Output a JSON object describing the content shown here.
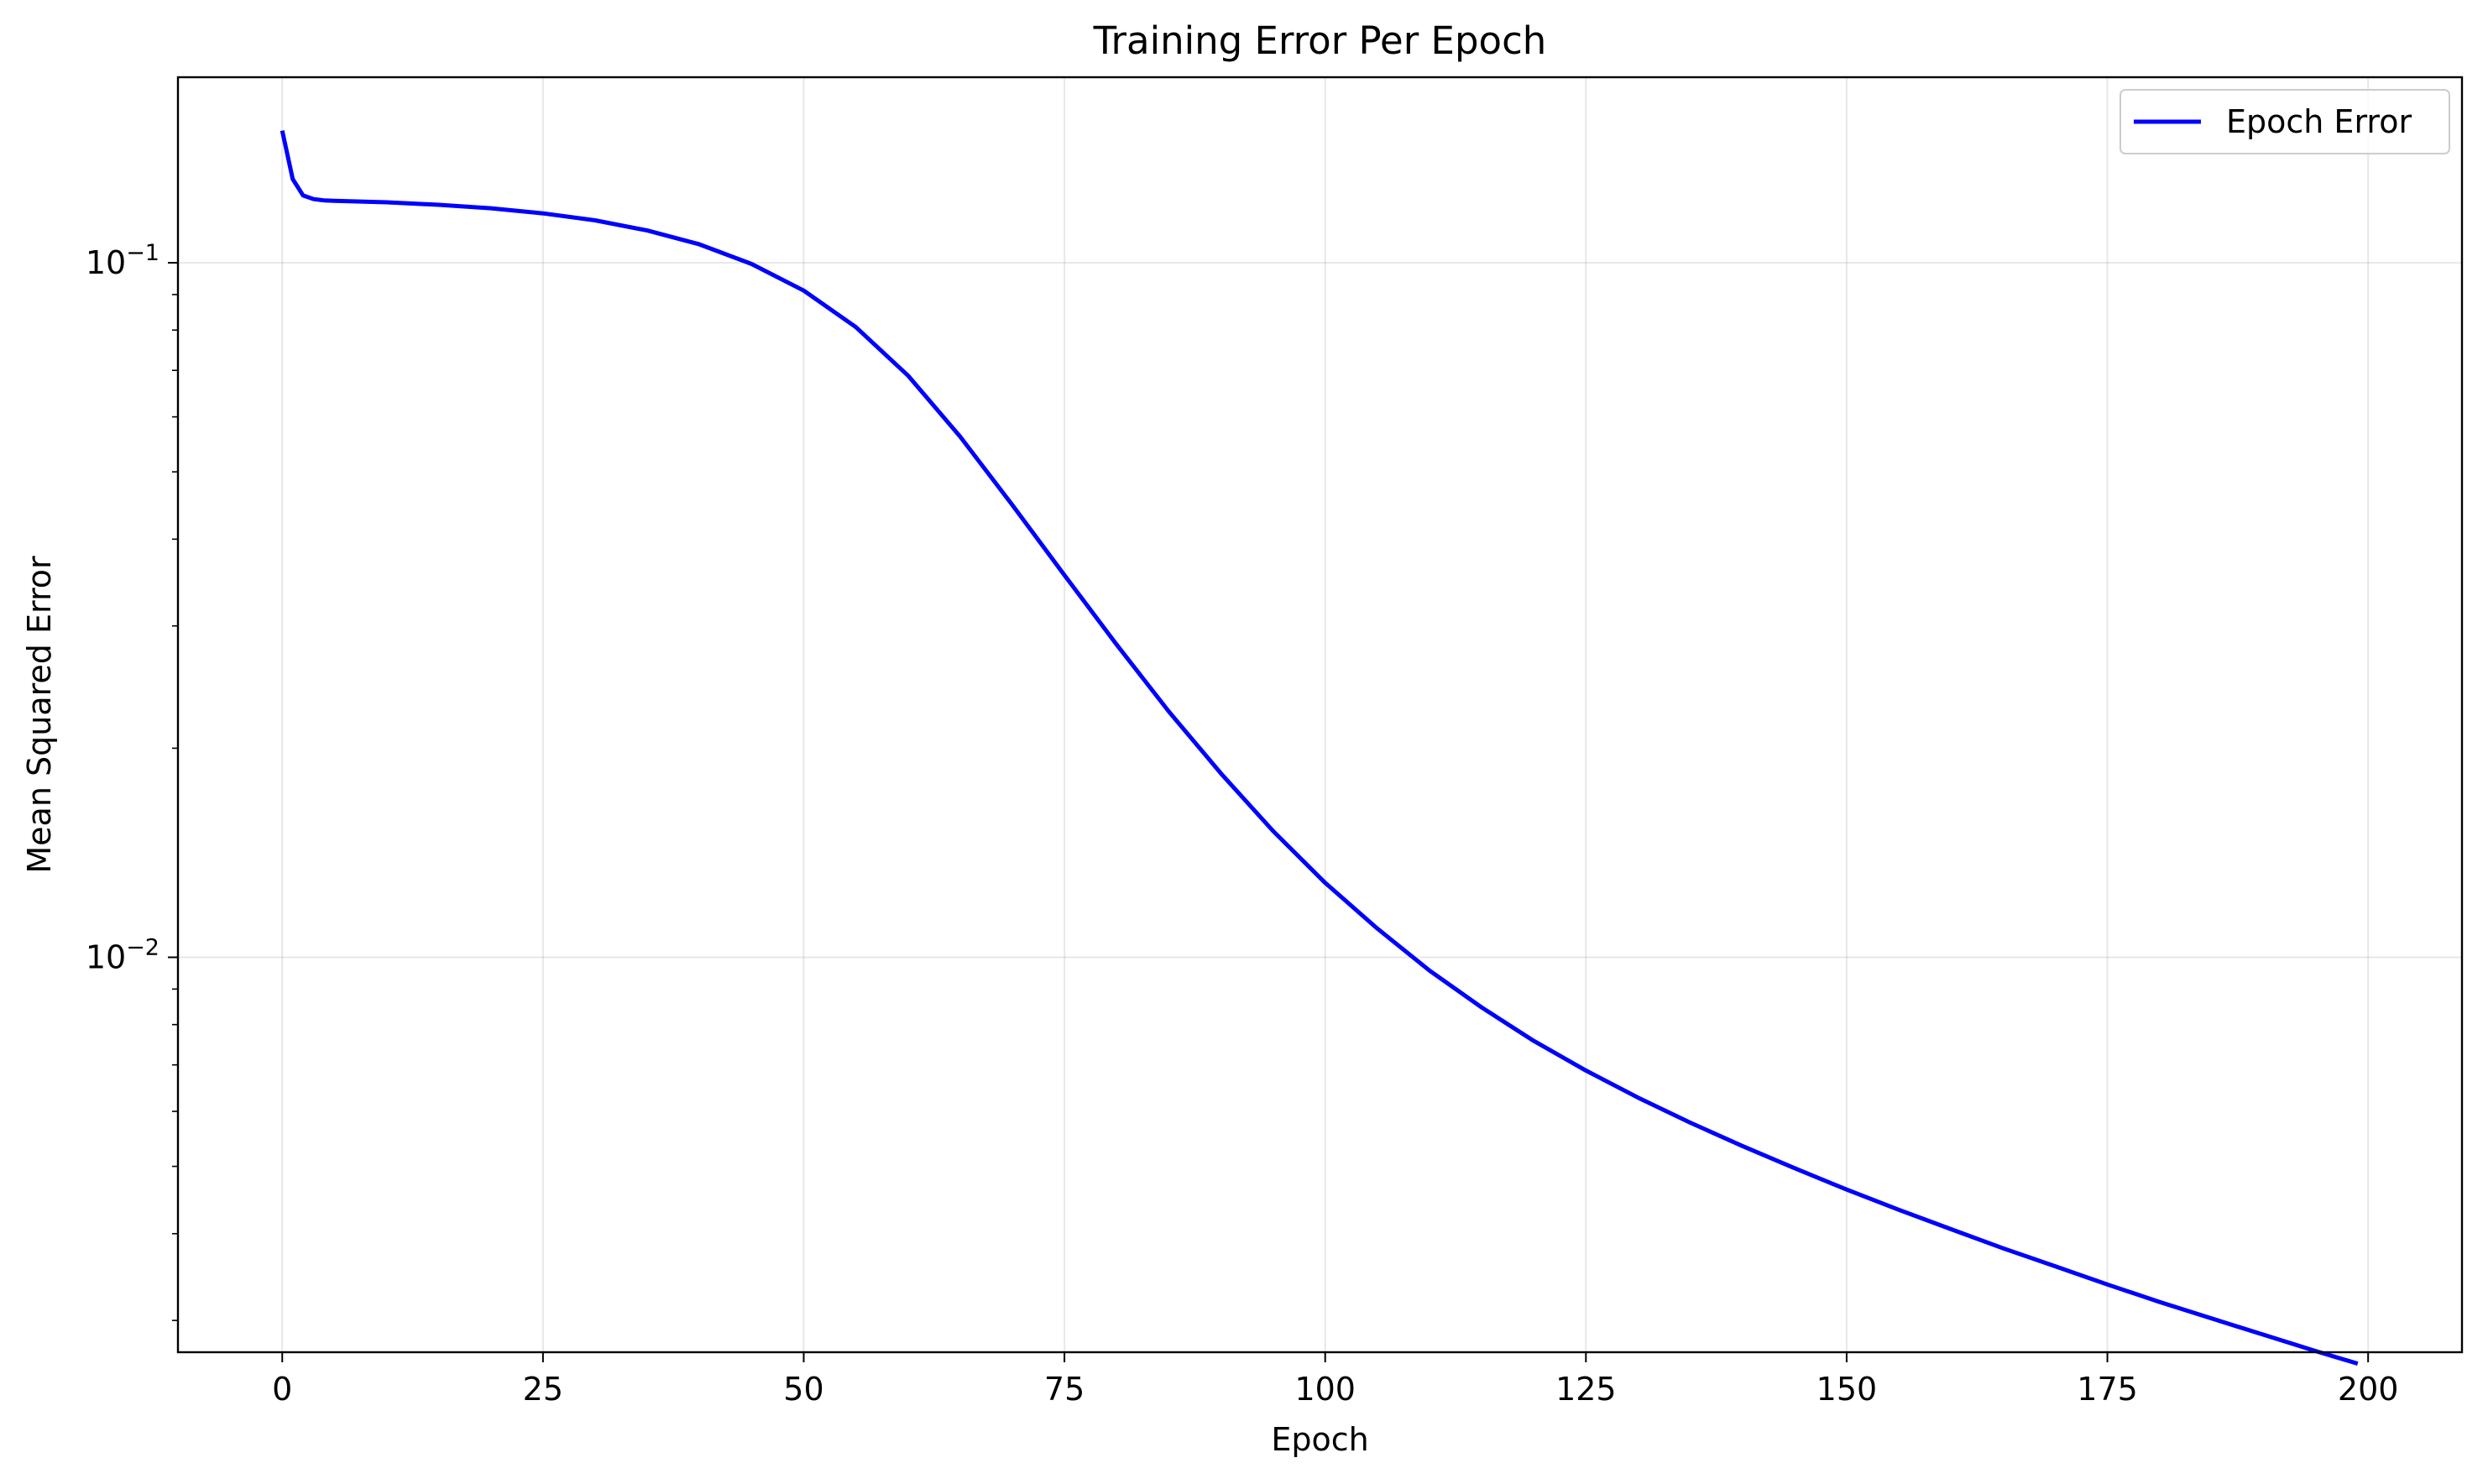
{
  "chart_data": {
    "type": "line",
    "title": "Training Error Per Epoch",
    "xlabel": "Epoch",
    "ylabel": "Mean Squared Error",
    "yscale": "log",
    "xlim": [
      -10,
      209
    ],
    "ylim": [
      0.0027,
      0.185
    ],
    "xticks": [
      0,
      25,
      50,
      75,
      100,
      125,
      150,
      175,
      200
    ],
    "xtick_labels": [
      "0",
      "25",
      "50",
      "75",
      "100",
      "125",
      "150",
      "175",
      "200"
    ],
    "yticks": [
      0.1,
      0.01
    ],
    "ytick_labels": [
      {
        "base": "10",
        "exp": "−1"
      },
      {
        "base": "10",
        "exp": "−2"
      }
    ],
    "grid": true,
    "legend": {
      "position": "top-right"
    },
    "series": [
      {
        "name": "Epoch Error",
        "color": "#0000ff",
        "x": [
          0,
          1,
          2,
          3,
          4,
          5,
          10,
          15,
          20,
          25,
          30,
          35,
          40,
          45,
          50,
          55,
          60,
          65,
          70,
          75,
          80,
          85,
          90,
          95,
          100,
          105,
          110,
          115,
          120,
          125,
          130,
          135,
          140,
          145,
          150,
          155,
          160,
          165,
          170,
          175,
          180,
          185,
          190,
          195,
          199
        ],
        "y": [
          0.155,
          0.132,
          0.125,
          0.1235,
          0.123,
          0.1228,
          0.1222,
          0.1212,
          0.1198,
          0.1178,
          0.1151,
          0.1113,
          0.1063,
          0.0996,
          0.0912,
          0.0808,
          0.0688,
          0.0562,
          0.0448,
          0.0355,
          0.0282,
          0.0226,
          0.0184,
          0.0152,
          0.0128,
          0.011,
          0.00957,
          0.00847,
          0.00758,
          0.00687,
          0.00628,
          0.00578,
          0.00535,
          0.00497,
          0.00463,
          0.00433,
          0.00406,
          0.00381,
          0.00359,
          0.00338,
          0.00319,
          0.00302,
          0.00286,
          0.00271,
          0.0026
        ]
      }
    ]
  }
}
